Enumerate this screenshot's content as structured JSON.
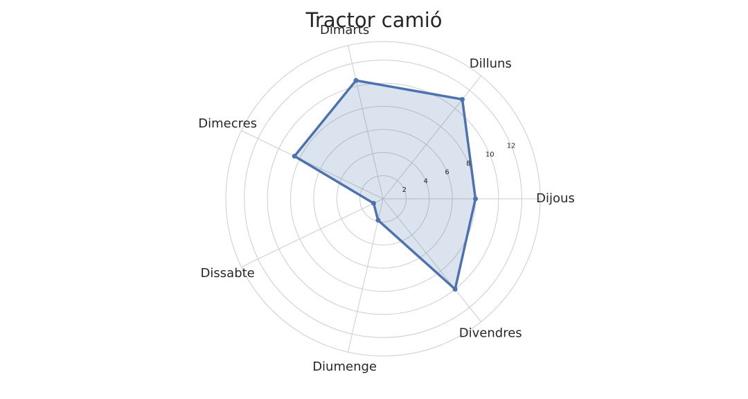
{
  "chart_data": {
    "type": "radar",
    "title": "Tractor camió",
    "categories": [
      "Dijous",
      "Dilluns",
      "Dimarts",
      "Dimecres",
      "Dissabte",
      "Diumenge",
      "Divendres"
    ],
    "values": [
      8.0,
      11.0,
      10.5,
      8.5,
      0.9,
      1.9,
      10.0
    ],
    "radial_ticks": [
      2,
      4,
      6,
      8,
      10,
      12
    ],
    "radial_range": [
      0,
      13
    ],
    "series_color": "#4c72b0",
    "fill_color": "#4c72b0",
    "grid": true
  }
}
